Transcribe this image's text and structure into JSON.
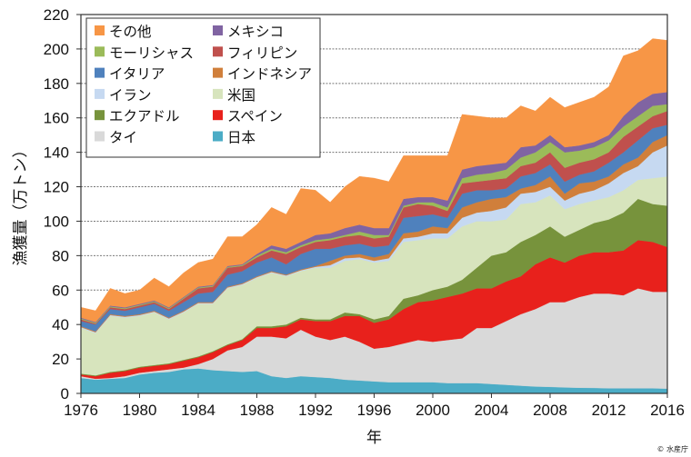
{
  "chart_data": {
    "type": "area",
    "stacked": true,
    "title": "",
    "xlabel": "年",
    "ylabel": "漁獲量（万トン）",
    "xlim": [
      1976,
      2016
    ],
    "ylim": [
      0,
      220
    ],
    "x_ticks": [
      "1976",
      "1980",
      "1984",
      "1988",
      "1992",
      "1996",
      "2000",
      "2004",
      "2008",
      "2012",
      "2016"
    ],
    "y_ticks": [
      "0",
      "20",
      "40",
      "60",
      "80",
      "100",
      "120",
      "140",
      "160",
      "180",
      "200",
      "220"
    ],
    "grid": "horizontal-dotted",
    "legend_position": "top-left",
    "credit": "© 水産庁",
    "x": [
      1976,
      1977,
      1978,
      1979,
      1980,
      1981,
      1982,
      1983,
      1984,
      1985,
      1986,
      1987,
      1988,
      1989,
      1990,
      1991,
      1992,
      1993,
      1994,
      1995,
      1996,
      1997,
      1998,
      1999,
      2000,
      2001,
      2002,
      2003,
      2004,
      2005,
      2006,
      2007,
      2008,
      2009,
      2010,
      2011,
      2012,
      2013,
      2014,
      2015,
      2016
    ],
    "series": [
      {
        "name": "日本",
        "color": "#4BACC6",
        "values": [
          9,
          8,
          8.5,
          9,
          11,
          12,
          12.5,
          14,
          14.5,
          13.5,
          13,
          12.5,
          13,
          10,
          9,
          10,
          9.5,
          9,
          8,
          7.5,
          7,
          6.5,
          6.5,
          6.5,
          6.5,
          6,
          6,
          6,
          5.5,
          5,
          4.5,
          4,
          3.8,
          3.5,
          3.3,
          3.2,
          3,
          3,
          3,
          3,
          2.8
        ]
      },
      {
        "name": "タイ",
        "color": "#D9D9D9",
        "values": [
          1,
          0.5,
          0.5,
          1,
          1,
          1,
          1.5,
          1,
          2.5,
          6.5,
          12,
          14.5,
          20,
          23,
          23,
          27,
          23.5,
          22,
          25,
          22.5,
          19,
          20.5,
          22.5,
          24.5,
          23.5,
          25,
          26,
          32,
          32.5,
          37,
          41.5,
          45,
          49.2,
          49.5,
          52.7,
          54.8,
          55,
          54,
          58,
          56,
          56.2
        ]
      },
      {
        "name": "スペイン",
        "color": "#E8211C",
        "values": [
          1,
          1.5,
          3,
          3,
          3,
          3,
          3,
          4,
          4,
          4,
          3,
          4,
          5,
          5,
          7,
          6,
          9,
          11,
          12,
          15,
          15,
          16,
          20,
          22,
          24,
          25,
          26,
          23,
          23,
          23,
          22,
          26,
          26,
          23,
          24,
          24,
          24,
          26,
          28,
          29,
          26
        ]
      },
      {
        "name": "エクアドル",
        "color": "#77933C",
        "values": [
          0.5,
          0.5,
          0.5,
          0.5,
          0.5,
          0.5,
          0.5,
          0.5,
          0.5,
          0.5,
          0.5,
          0.5,
          1,
          1,
          1,
          1,
          1,
          1,
          2,
          1,
          2,
          2,
          6,
          4,
          6,
          6,
          8,
          12,
          19,
          17,
          20,
          17,
          18,
          15,
          15,
          17,
          19,
          22,
          24,
          22,
          24
        ]
      },
      {
        "name": "米国",
        "color": "#D7E4BD",
        "values": [
          26.5,
          24.5,
          32.5,
          30.5,
          29.5,
          30.5,
          25.5,
          27.5,
          30.5,
          27.5,
          32.5,
          31.5,
          28,
          31,
          28,
          27,
          30,
          30,
          30,
          32,
          33,
          32,
          33,
          32,
          30,
          28,
          31,
          27,
          20,
          19,
          22,
          19,
          18,
          16,
          15,
          13,
          13,
          13,
          11,
          15,
          17
        ]
      },
      {
        "name": "イラン",
        "color": "#C6D9F1",
        "values": [
          0.5,
          0.5,
          0.5,
          0.5,
          0.5,
          0.5,
          0.5,
          0.5,
          0.5,
          0.5,
          0.5,
          0.5,
          0.5,
          0.5,
          0.5,
          0.5,
          0.5,
          1.5,
          1.5,
          1,
          1,
          1.5,
          2,
          2,
          3,
          3,
          5,
          5,
          6,
          7,
          6,
          6,
          5,
          5,
          6,
          6,
          8,
          10,
          8,
          15,
          18
        ]
      },
      {
        "name": "インドネシア",
        "color": "#D07F3B",
        "values": [
          0.5,
          0.5,
          0.5,
          0.5,
          0.5,
          0.5,
          0.5,
          0.5,
          0.5,
          0.5,
          0.5,
          0.5,
          0.5,
          0.5,
          0.5,
          0.5,
          0.5,
          2.5,
          1.5,
          2,
          2,
          2.5,
          3,
          3,
          4,
          3,
          6,
          6,
          7,
          6,
          3,
          4,
          6,
          4,
          6,
          5,
          4,
          5,
          5,
          6,
          6
        ]
      },
      {
        "name": "イタリア",
        "color": "#4F81BD",
        "values": [
          3,
          4,
          3,
          3,
          4,
          4,
          4,
          5,
          5,
          6,
          7,
          7,
          8,
          8,
          6,
          9,
          10,
          7,
          6,
          6,
          6,
          5,
          9,
          9,
          7,
          6,
          8,
          7,
          5,
          5,
          7,
          7,
          7,
          7,
          5,
          6,
          8,
          7,
          10,
          8,
          6
        ]
      },
      {
        "name": "フィリピン",
        "color": "#C0504D",
        "values": [
          1,
          0.5,
          1,
          1,
          1,
          1,
          1,
          2,
          3,
          3,
          4,
          3,
          3,
          4,
          6,
          4,
          4,
          5,
          5,
          5,
          5,
          5,
          6,
          7,
          5,
          4,
          6,
          5,
          6,
          6,
          6,
          6,
          7,
          8,
          7,
          7,
          6,
          9,
          8,
          7,
          8
        ]
      },
      {
        "name": "モーリシャス",
        "color": "#9BBB59",
        "values": [
          0.5,
          0.5,
          0.5,
          0.5,
          0.5,
          0.5,
          0.5,
          0.5,
          0.5,
          0.5,
          0.5,
          0.5,
          1,
          1,
          1,
          1,
          1,
          1,
          1,
          2,
          2,
          1,
          1,
          1,
          2,
          2,
          3,
          4,
          4,
          5,
          5,
          6,
          6,
          9,
          7,
          7,
          7,
          6,
          6,
          6,
          4
        ]
      },
      {
        "name": "メキシコ",
        "color": "#8064A2",
        "values": [
          0.5,
          0.5,
          0.5,
          0.5,
          0.5,
          0.5,
          0.5,
          0.5,
          0.5,
          0.5,
          0.5,
          0.5,
          1,
          2,
          2,
          2,
          3,
          3,
          4,
          4,
          4,
          4,
          4,
          3,
          3,
          4,
          5,
          5,
          5,
          4,
          6,
          4,
          4,
          3,
          3,
          3,
          3,
          6,
          8,
          7,
          7
        ]
      },
      {
        "name": "その他",
        "color": "#F79646",
        "values": [
          6,
          6.5,
          10,
          8,
          8,
          13,
          12,
          14,
          14,
          15,
          17,
          16,
          17,
          22,
          20,
          31,
          26,
          18,
          24,
          28,
          29,
          27,
          25,
          24,
          24,
          26,
          32,
          29,
          27,
          26,
          24,
          20,
          22,
          23,
          25,
          26,
          28,
          35,
          30,
          32,
          30
        ]
      }
    ]
  },
  "legend": {
    "left": [
      "その他",
      "モーリシャス",
      "イタリア",
      "イラン",
      "エクアドル",
      "タイ"
    ],
    "right": [
      "メキシコ",
      "フィリピン",
      "インドネシア",
      "米国",
      "スペイン",
      "日本"
    ]
  }
}
